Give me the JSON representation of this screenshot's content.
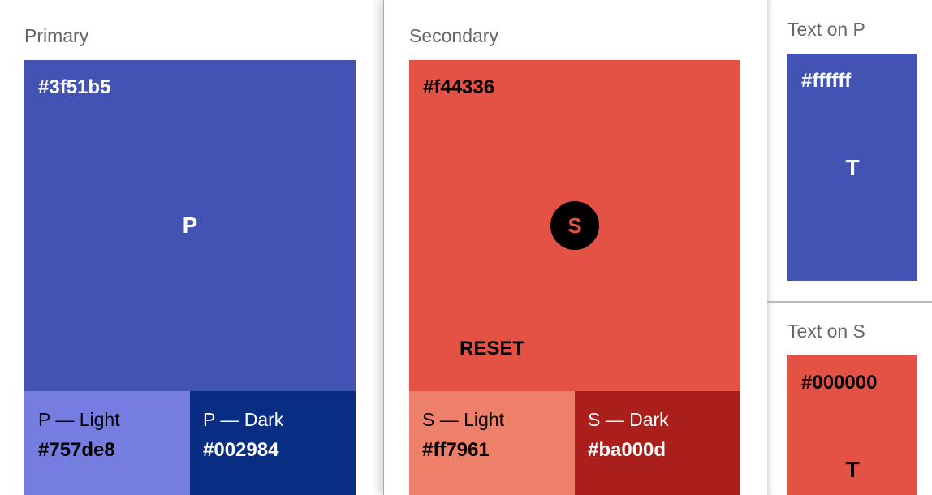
{
  "primary": {
    "label": "Primary",
    "hex": "#3f51b5",
    "letter": "P",
    "color": "#4353b3",
    "light": {
      "label": "P — Light",
      "hex": "#757de8",
      "color": "#757de0"
    },
    "dark": {
      "label": "P — Dark",
      "hex": "#002984",
      "color": "#082d82"
    }
  },
  "secondary": {
    "label": "Secondary",
    "hex": "#f44336",
    "fab_letter": "S",
    "reset_label": "RESET",
    "color": "#e35244",
    "light": {
      "label": "S — Light",
      "hex": "#ff7961",
      "color": "#ee7f68"
    },
    "dark": {
      "label": "S — Dark",
      "hex": "#ba000d",
      "color": "#aa1f1b"
    }
  },
  "text_on_p": {
    "label": "Text on P",
    "hex": "#ffffff",
    "letter": "T"
  },
  "text_on_s": {
    "label": "Text on S",
    "hex": "#000000",
    "letter": "T"
  }
}
